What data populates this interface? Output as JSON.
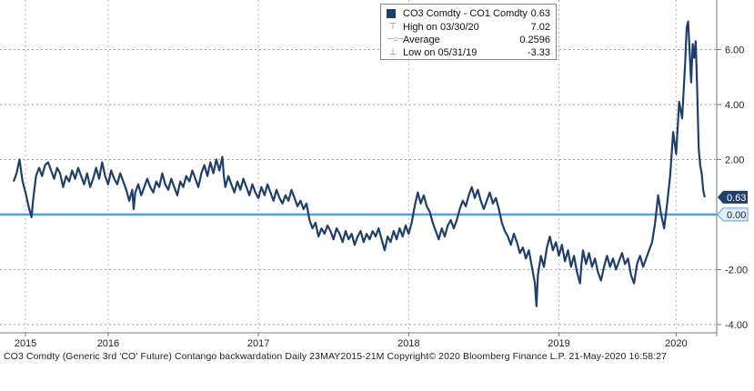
{
  "chart_data": {
    "type": "line",
    "title": "CO3 Comdty - CO1 Comdty",
    "series": [
      {
        "name": "CO3 Comdty - CO1 Comdty",
        "color": "#1f3f6b",
        "points": [
          [
            2015.39,
            1.2
          ],
          [
            2015.41,
            1.5
          ],
          [
            2015.43,
            2.0
          ],
          [
            2015.45,
            1.2
          ],
          [
            2015.47,
            0.8
          ],
          [
            2015.49,
            0.3
          ],
          [
            2015.51,
            -0.1
          ],
          [
            2015.52,
            0.5
          ],
          [
            2015.54,
            1.4
          ],
          [
            2015.56,
            1.7
          ],
          [
            2015.58,
            1.4
          ],
          [
            2015.6,
            1.8
          ],
          [
            2015.62,
            1.9
          ],
          [
            2015.64,
            1.6
          ],
          [
            2015.66,
            1.3
          ],
          [
            2015.68,
            1.7
          ],
          [
            2015.7,
            1.5
          ],
          [
            2015.72,
            1.0
          ],
          [
            2015.74,
            1.4
          ],
          [
            2015.76,
            1.2
          ],
          [
            2015.78,
            1.6
          ],
          [
            2015.8,
            1.3
          ],
          [
            2015.82,
            1.7
          ],
          [
            2015.84,
            1.4
          ],
          [
            2015.86,
            1.1
          ],
          [
            2015.88,
            1.5
          ],
          [
            2015.9,
            1.0
          ],
          [
            2015.92,
            1.3
          ],
          [
            2015.94,
            1.7
          ],
          [
            2015.96,
            1.3
          ],
          [
            2015.98,
            1.9
          ],
          [
            2016.0,
            1.4
          ],
          [
            2016.02,
            1.1
          ],
          [
            2016.04,
            1.6
          ],
          [
            2016.06,
            1.3
          ],
          [
            2016.08,
            1.1
          ],
          [
            2016.1,
            1.5
          ],
          [
            2016.12,
            1.2
          ],
          [
            2016.14,
            0.9
          ],
          [
            2016.16,
            0.5
          ],
          [
            2016.18,
            0.9
          ],
          [
            2016.19,
            0.2
          ],
          [
            2016.2,
            0.8
          ],
          [
            2016.22,
            1.1
          ],
          [
            2016.24,
            0.7
          ],
          [
            2016.26,
            1.0
          ],
          [
            2016.28,
            1.3
          ],
          [
            2016.3,
            1.0
          ],
          [
            2016.32,
            0.8
          ],
          [
            2016.34,
            1.2
          ],
          [
            2016.36,
            1.0
          ],
          [
            2016.38,
            1.5
          ],
          [
            2016.4,
            1.1
          ],
          [
            2016.42,
            0.9
          ],
          [
            2016.44,
            1.3
          ],
          [
            2016.46,
            1.0
          ],
          [
            2016.48,
            0.7
          ],
          [
            2016.5,
            1.2
          ],
          [
            2016.52,
            1.0
          ],
          [
            2016.54,
            1.4
          ],
          [
            2016.56,
            1.2
          ],
          [
            2016.58,
            1.6
          ],
          [
            2016.6,
            1.3
          ],
          [
            2016.62,
            1.0
          ],
          [
            2016.64,
            1.5
          ],
          [
            2016.66,
            1.8
          ],
          [
            2016.68,
            1.4
          ],
          [
            2016.7,
            1.9
          ],
          [
            2016.72,
            1.5
          ],
          [
            2016.74,
            2.0
          ],
          [
            2016.76,
            1.6
          ],
          [
            2016.78,
            2.1
          ],
          [
            2016.79,
            1.4
          ],
          [
            2016.8,
            1.0
          ],
          [
            2016.82,
            1.4
          ],
          [
            2016.84,
            1.1
          ],
          [
            2016.86,
            0.8
          ],
          [
            2016.88,
            1.2
          ],
          [
            2016.9,
            0.9
          ],
          [
            2016.92,
            1.3
          ],
          [
            2016.94,
            1.0
          ],
          [
            2016.96,
            0.7
          ],
          [
            2016.98,
            1.1
          ],
          [
            2017.0,
            0.8
          ],
          [
            2017.02,
            0.6
          ],
          [
            2017.04,
            1.0
          ],
          [
            2017.06,
            0.7
          ],
          [
            2017.08,
            1.1
          ],
          [
            2017.1,
            0.8
          ],
          [
            2017.12,
            0.5
          ],
          [
            2017.14,
            0.9
          ],
          [
            2017.16,
            0.6
          ],
          [
            2017.18,
            0.4
          ],
          [
            2017.2,
            0.7
          ],
          [
            2017.22,
            0.5
          ],
          [
            2017.24,
            0.9
          ],
          [
            2017.26,
            0.6
          ],
          [
            2017.28,
            0.3
          ],
          [
            2017.3,
            0.5
          ],
          [
            2017.32,
            0.2
          ],
          [
            2017.34,
            0.4
          ],
          [
            2017.36,
            -0.2
          ],
          [
            2017.38,
            -0.5
          ],
          [
            2017.4,
            -0.3
          ],
          [
            2017.42,
            -0.8
          ],
          [
            2017.44,
            -0.5
          ],
          [
            2017.46,
            -0.7
          ],
          [
            2017.48,
            -0.4
          ],
          [
            2017.5,
            -0.6
          ],
          [
            2017.52,
            -0.9
          ],
          [
            2017.54,
            -0.5
          ],
          [
            2017.56,
            -0.7
          ],
          [
            2017.58,
            -1.0
          ],
          [
            2017.6,
            -0.6
          ],
          [
            2017.62,
            -0.9
          ],
          [
            2017.64,
            -0.7
          ],
          [
            2017.66,
            -1.1
          ],
          [
            2017.68,
            -0.8
          ],
          [
            2017.7,
            -0.6
          ],
          [
            2017.72,
            -1.0
          ],
          [
            2017.74,
            -0.7
          ],
          [
            2017.76,
            -0.9
          ],
          [
            2017.78,
            -0.6
          ],
          [
            2017.8,
            -0.8
          ],
          [
            2017.82,
            -0.5
          ],
          [
            2017.84,
            -0.9
          ],
          [
            2017.86,
            -1.3
          ],
          [
            2017.88,
            -0.8
          ],
          [
            2017.9,
            -1.0
          ],
          [
            2017.92,
            -0.6
          ],
          [
            2017.94,
            -0.9
          ],
          [
            2017.96,
            -0.5
          ],
          [
            2017.98,
            -0.8
          ],
          [
            2018.0,
            -0.4
          ],
          [
            2018.02,
            -0.7
          ],
          [
            2018.04,
            -0.3
          ],
          [
            2018.06,
            0.3
          ],
          [
            2018.08,
            0.8
          ],
          [
            2018.1,
            0.4
          ],
          [
            2018.12,
            0.7
          ],
          [
            2018.14,
            0.3
          ],
          [
            2018.16,
            0.1
          ],
          [
            2018.18,
            -0.3
          ],
          [
            2018.2,
            -0.6
          ],
          [
            2018.22,
            -0.9
          ],
          [
            2018.24,
            -0.5
          ],
          [
            2018.26,
            -0.8
          ],
          [
            2018.28,
            -0.4
          ],
          [
            2018.3,
            -0.2
          ],
          [
            2018.32,
            -0.5
          ],
          [
            2018.34,
            -0.2
          ],
          [
            2018.36,
            0.2
          ],
          [
            2018.38,
            0.5
          ],
          [
            2018.4,
            0.3
          ],
          [
            2018.42,
            0.7
          ],
          [
            2018.44,
            1.0
          ],
          [
            2018.46,
            0.6
          ],
          [
            2018.48,
            0.9
          ],
          [
            2018.5,
            0.5
          ],
          [
            2018.52,
            0.2
          ],
          [
            2018.54,
            0.5
          ],
          [
            2018.56,
            0.8
          ],
          [
            2018.58,
            0.4
          ],
          [
            2018.6,
            0.6
          ],
          [
            2018.62,
            0.2
          ],
          [
            2018.64,
            -0.3
          ],
          [
            2018.66,
            -0.6
          ],
          [
            2018.68,
            -0.8
          ],
          [
            2018.7,
            -1.1
          ],
          [
            2018.72,
            -0.7
          ],
          [
            2018.74,
            -1.0
          ],
          [
            2018.76,
            -1.4
          ],
          [
            2018.78,
            -1.2
          ],
          [
            2018.8,
            -1.6
          ],
          [
            2018.82,
            -1.3
          ],
          [
            2018.84,
            -1.9
          ],
          [
            2018.86,
            -2.5
          ],
          [
            2018.87,
            -3.33
          ],
          [
            2018.88,
            -2.2
          ],
          [
            2018.9,
            -1.5
          ],
          [
            2018.92,
            -1.9
          ],
          [
            2018.94,
            -1.2
          ],
          [
            2018.96,
            -0.8
          ],
          [
            2018.98,
            -1.3
          ],
          [
            2019.0,
            -1.0
          ],
          [
            2019.02,
            -1.5
          ],
          [
            2019.04,
            -1.1
          ],
          [
            2019.06,
            -1.7
          ],
          [
            2019.08,
            -1.3
          ],
          [
            2019.1,
            -1.9
          ],
          [
            2019.12,
            -1.5
          ],
          [
            2019.14,
            -2.1
          ],
          [
            2019.16,
            -2.5
          ],
          [
            2019.17,
            -1.8
          ],
          [
            2019.18,
            -1.3
          ],
          [
            2019.2,
            -1.8
          ],
          [
            2019.22,
            -1.4
          ],
          [
            2019.24,
            -1.9
          ],
          [
            2019.26,
            -1.6
          ],
          [
            2019.28,
            -2.1
          ],
          [
            2019.3,
            -2.4
          ],
          [
            2019.32,
            -1.9
          ],
          [
            2019.34,
            -1.5
          ],
          [
            2019.36,
            -1.9
          ],
          [
            2019.38,
            -1.6
          ],
          [
            2019.4,
            -2.0
          ],
          [
            2019.42,
            -1.7
          ],
          [
            2019.44,
            -1.4
          ],
          [
            2019.46,
            -1.8
          ],
          [
            2019.48,
            -1.6
          ],
          [
            2019.5,
            -2.2
          ],
          [
            2019.52,
            -2.5
          ],
          [
            2019.54,
            -1.8
          ],
          [
            2019.56,
            -1.5
          ],
          [
            2019.58,
            -1.9
          ],
          [
            2019.6,
            -1.6
          ],
          [
            2019.62,
            -1.3
          ],
          [
            2019.64,
            -1.0
          ],
          [
            2019.66,
            -0.3
          ],
          [
            2019.68,
            0.7
          ],
          [
            2019.7,
            0.0
          ],
          [
            2019.72,
            -0.5
          ],
          [
            2019.74,
            0.4
          ],
          [
            2019.76,
            1.4
          ],
          [
            2019.78,
            3.0
          ],
          [
            2019.8,
            2.2
          ],
          [
            2019.82,
            4.1
          ],
          [
            2019.84,
            3.5
          ],
          [
            2019.86,
            5.5
          ],
          [
            2019.87,
            6.8
          ],
          [
            2019.88,
            7.02
          ],
          [
            2019.89,
            5.9
          ],
          [
            2019.9,
            4.8
          ],
          [
            2019.91,
            6.2
          ],
          [
            2019.92,
            5.7
          ],
          [
            2019.93,
            6.3
          ],
          [
            2019.94,
            4.6
          ],
          [
            2019.95,
            2.4
          ],
          [
            2019.96,
            1.8
          ],
          [
            2019.97,
            1.5
          ],
          [
            2019.98,
            0.9
          ],
          [
            2019.99,
            0.63
          ]
        ]
      }
    ],
    "xlim": [
      2015.3,
      2020.07
    ],
    "ylim": [
      -4.3,
      7.8
    ],
    "yticks": [
      -4.0,
      -2.0,
      0.0,
      2.0,
      4.0,
      6.0
    ],
    "ytick_labels": [
      "-4.00",
      "-2.00",
      "0.00",
      "2.00",
      "4.00",
      "6.00"
    ],
    "xticks": [
      {
        "pos": 2015.47,
        "label": "2015"
      },
      {
        "pos": 2016.02,
        "label": "2016"
      },
      {
        "pos": 2017.02,
        "label": "2017"
      },
      {
        "pos": 2018.02,
        "label": "2018"
      },
      {
        "pos": 2019.02,
        "label": "2019"
      },
      {
        "pos": 2019.8,
        "label": "2020"
      }
    ],
    "reference_line": {
      "value": 0.0,
      "label": "0.00",
      "color": "#5aa0e0"
    },
    "last_value": {
      "value": 0.63,
      "label": "0.63"
    },
    "grid": true,
    "legend_position": "top-center"
  },
  "legend": {
    "series_label": "CO3 Comdty - CO1 Comdty",
    "series_value": "0.63",
    "high_label": "High on 03/30/20",
    "high_value": "7.02",
    "average_label": "Average",
    "average_value": "0.2596",
    "low_label": "Low on 05/31/19",
    "low_value": "-3.33"
  },
  "footer": "CO3 Comdty (Generic 3rd 'CO' Future) Contango backwardation  Daily 23MAY2015-21M Copyright© 2020 Bloomberg Finance L.P. 21-May-2020 16:58:27"
}
